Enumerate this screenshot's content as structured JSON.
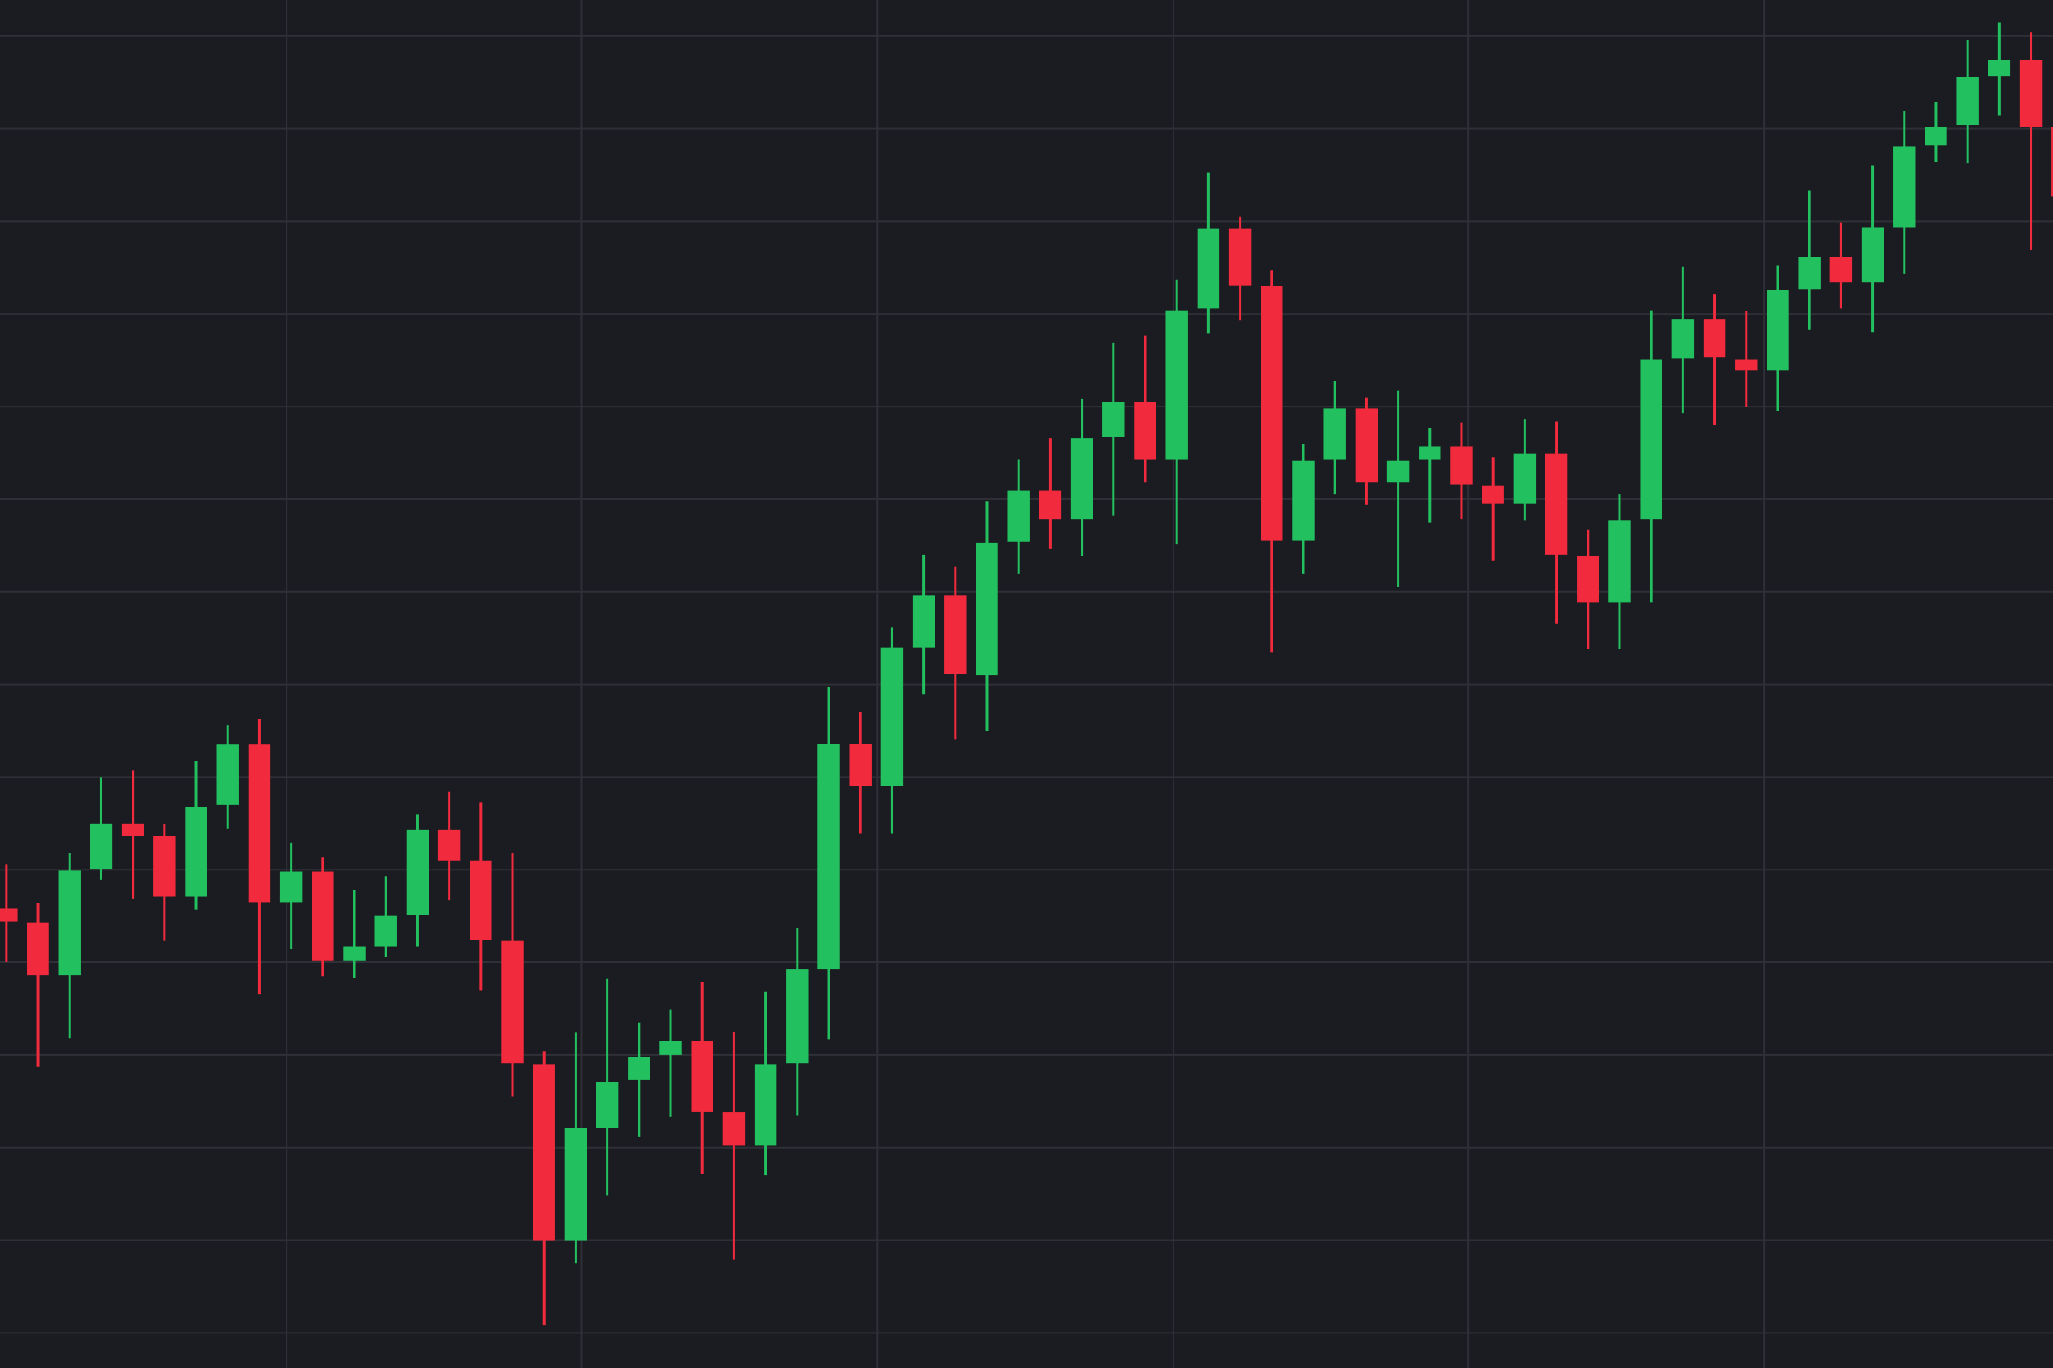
{
  "chart_data": {
    "type": "candlestick",
    "x": [
      0,
      1,
      2,
      3,
      4,
      5,
      6,
      7,
      8,
      9,
      10,
      11,
      12,
      13,
      14,
      15,
      16,
      17,
      18,
      19,
      20,
      21,
      22,
      23,
      24,
      25,
      26,
      27,
      28,
      29,
      30,
      31,
      32,
      33,
      34,
      35,
      36,
      37,
      38,
      39,
      40,
      41,
      42,
      43,
      44,
      45,
      46,
      47,
      48,
      49,
      50,
      51,
      52,
      53,
      54,
      55,
      56,
      57,
      58,
      59,
      60,
      61,
      62,
      63,
      64,
      65
    ],
    "open": [
      45.8,
      44.3,
      38.6,
      50.1,
      55.0,
      53.6,
      47.1,
      57.0,
      63.5,
      46.5,
      49.8,
      40.2,
      41.7,
      45.1,
      54.3,
      51.0,
      42.3,
      29.0,
      10.0,
      22.1,
      27.3,
      30.0,
      31.5,
      23.8,
      20.2,
      29.1,
      39.3,
      63.6,
      59.0,
      74.0,
      79.6,
      71.0,
      85.4,
      90.9,
      87.8,
      96.7,
      100.5,
      94.3,
      110.6,
      119.2,
      113.0,
      85.5,
      94.3,
      99.8,
      91.8,
      94.3,
      95.7,
      91.5,
      89.5,
      94.9,
      83.9,
      78.9,
      87.8,
      105.2,
      109.4,
      105.1,
      103.9,
      112.7,
      116.2,
      113.4,
      119.3,
      128.2,
      130.4,
      135.7,
      137.4,
      130.2
    ],
    "high": [
      50.6,
      46.4,
      51.8,
      60.0,
      60.7,
      54.9,
      61.7,
      65.6,
      66.3,
      52.9,
      51.3,
      47.8,
      49.3,
      56.0,
      58.4,
      57.3,
      51.8,
      30.4,
      32.4,
      38.2,
      33.5,
      34.9,
      37.9,
      32.5,
      36.8,
      43.7,
      69.7,
      67.0,
      76.2,
      84.0,
      82.7,
      89.8,
      94.3,
      96.6,
      100.8,
      106.9,
      107.7,
      113.7,
      125.3,
      120.5,
      114.7,
      96.0,
      102.8,
      101.0,
      101.7,
      97.7,
      98.3,
      94.5,
      98.6,
      98.4,
      86.7,
      90.5,
      110.4,
      115.1,
      112.1,
      110.3,
      115.2,
      123.3,
      119.9,
      126.0,
      131.9,
      132.9,
      139.6,
      141.5,
      140.4,
      130.2
    ],
    "low": [
      40.0,
      28.7,
      31.8,
      48.9,
      46.9,
      42.3,
      45.7,
      54.4,
      36.6,
      41.4,
      38.5,
      38.3,
      40.6,
      41.7,
      46.7,
      37.0,
      25.5,
      0.8,
      7.5,
      14.8,
      21.2,
      23.3,
      17.1,
      7.9,
      17.0,
      23.5,
      31.7,
      53.9,
      53.9,
      68.9,
      64.1,
      65.0,
      81.9,
      84.6,
      83.9,
      88.2,
      91.8,
      85.1,
      107.9,
      109.3,
      73.5,
      81.9,
      90.5,
      89.4,
      80.5,
      87.5,
      87.8,
      83.4,
      87.7,
      76.6,
      73.8,
      73.8,
      78.9,
      99.3,
      98.0,
      100.0,
      99.5,
      108.3,
      110.6,
      108.0,
      114.3,
      126.4,
      126.3,
      131.4,
      116.9,
      122.7
    ],
    "close": [
      44.4,
      38.6,
      49.9,
      55.0,
      53.6,
      47.1,
      56.8,
      63.5,
      46.5,
      49.8,
      40.2,
      41.7,
      45.0,
      54.3,
      51.0,
      42.4,
      29.1,
      10.0,
      22.1,
      27.1,
      29.8,
      31.5,
      23.9,
      20.2,
      29.0,
      39.3,
      63.6,
      59.0,
      74.0,
      79.6,
      71.1,
      85.3,
      90.9,
      87.8,
      96.6,
      100.5,
      94.3,
      110.4,
      119.2,
      113.1,
      85.5,
      94.2,
      99.8,
      91.8,
      94.2,
      95.7,
      91.6,
      89.5,
      94.9,
      84.0,
      78.9,
      87.7,
      105.1,
      109.4,
      105.3,
      103.9,
      112.6,
      116.2,
      113.4,
      119.3,
      128.1,
      130.2,
      135.6,
      137.4,
      130.2,
      122.7
    ],
    "up_color": "#22c05f",
    "down_color": "#f12a3d",
    "xlim": [
      -0.2,
      64.7
    ],
    "xticks": [
      8.86,
      18.18,
      27.54,
      36.89,
      46.21,
      55.57
    ],
    "ylim": [
      -3.8,
      143.9
    ],
    "yticks": [
      0,
      10,
      20,
      30,
      40,
      50,
      60,
      70,
      80,
      90,
      100,
      110,
      120,
      130,
      140
    ],
    "grid": true
  }
}
